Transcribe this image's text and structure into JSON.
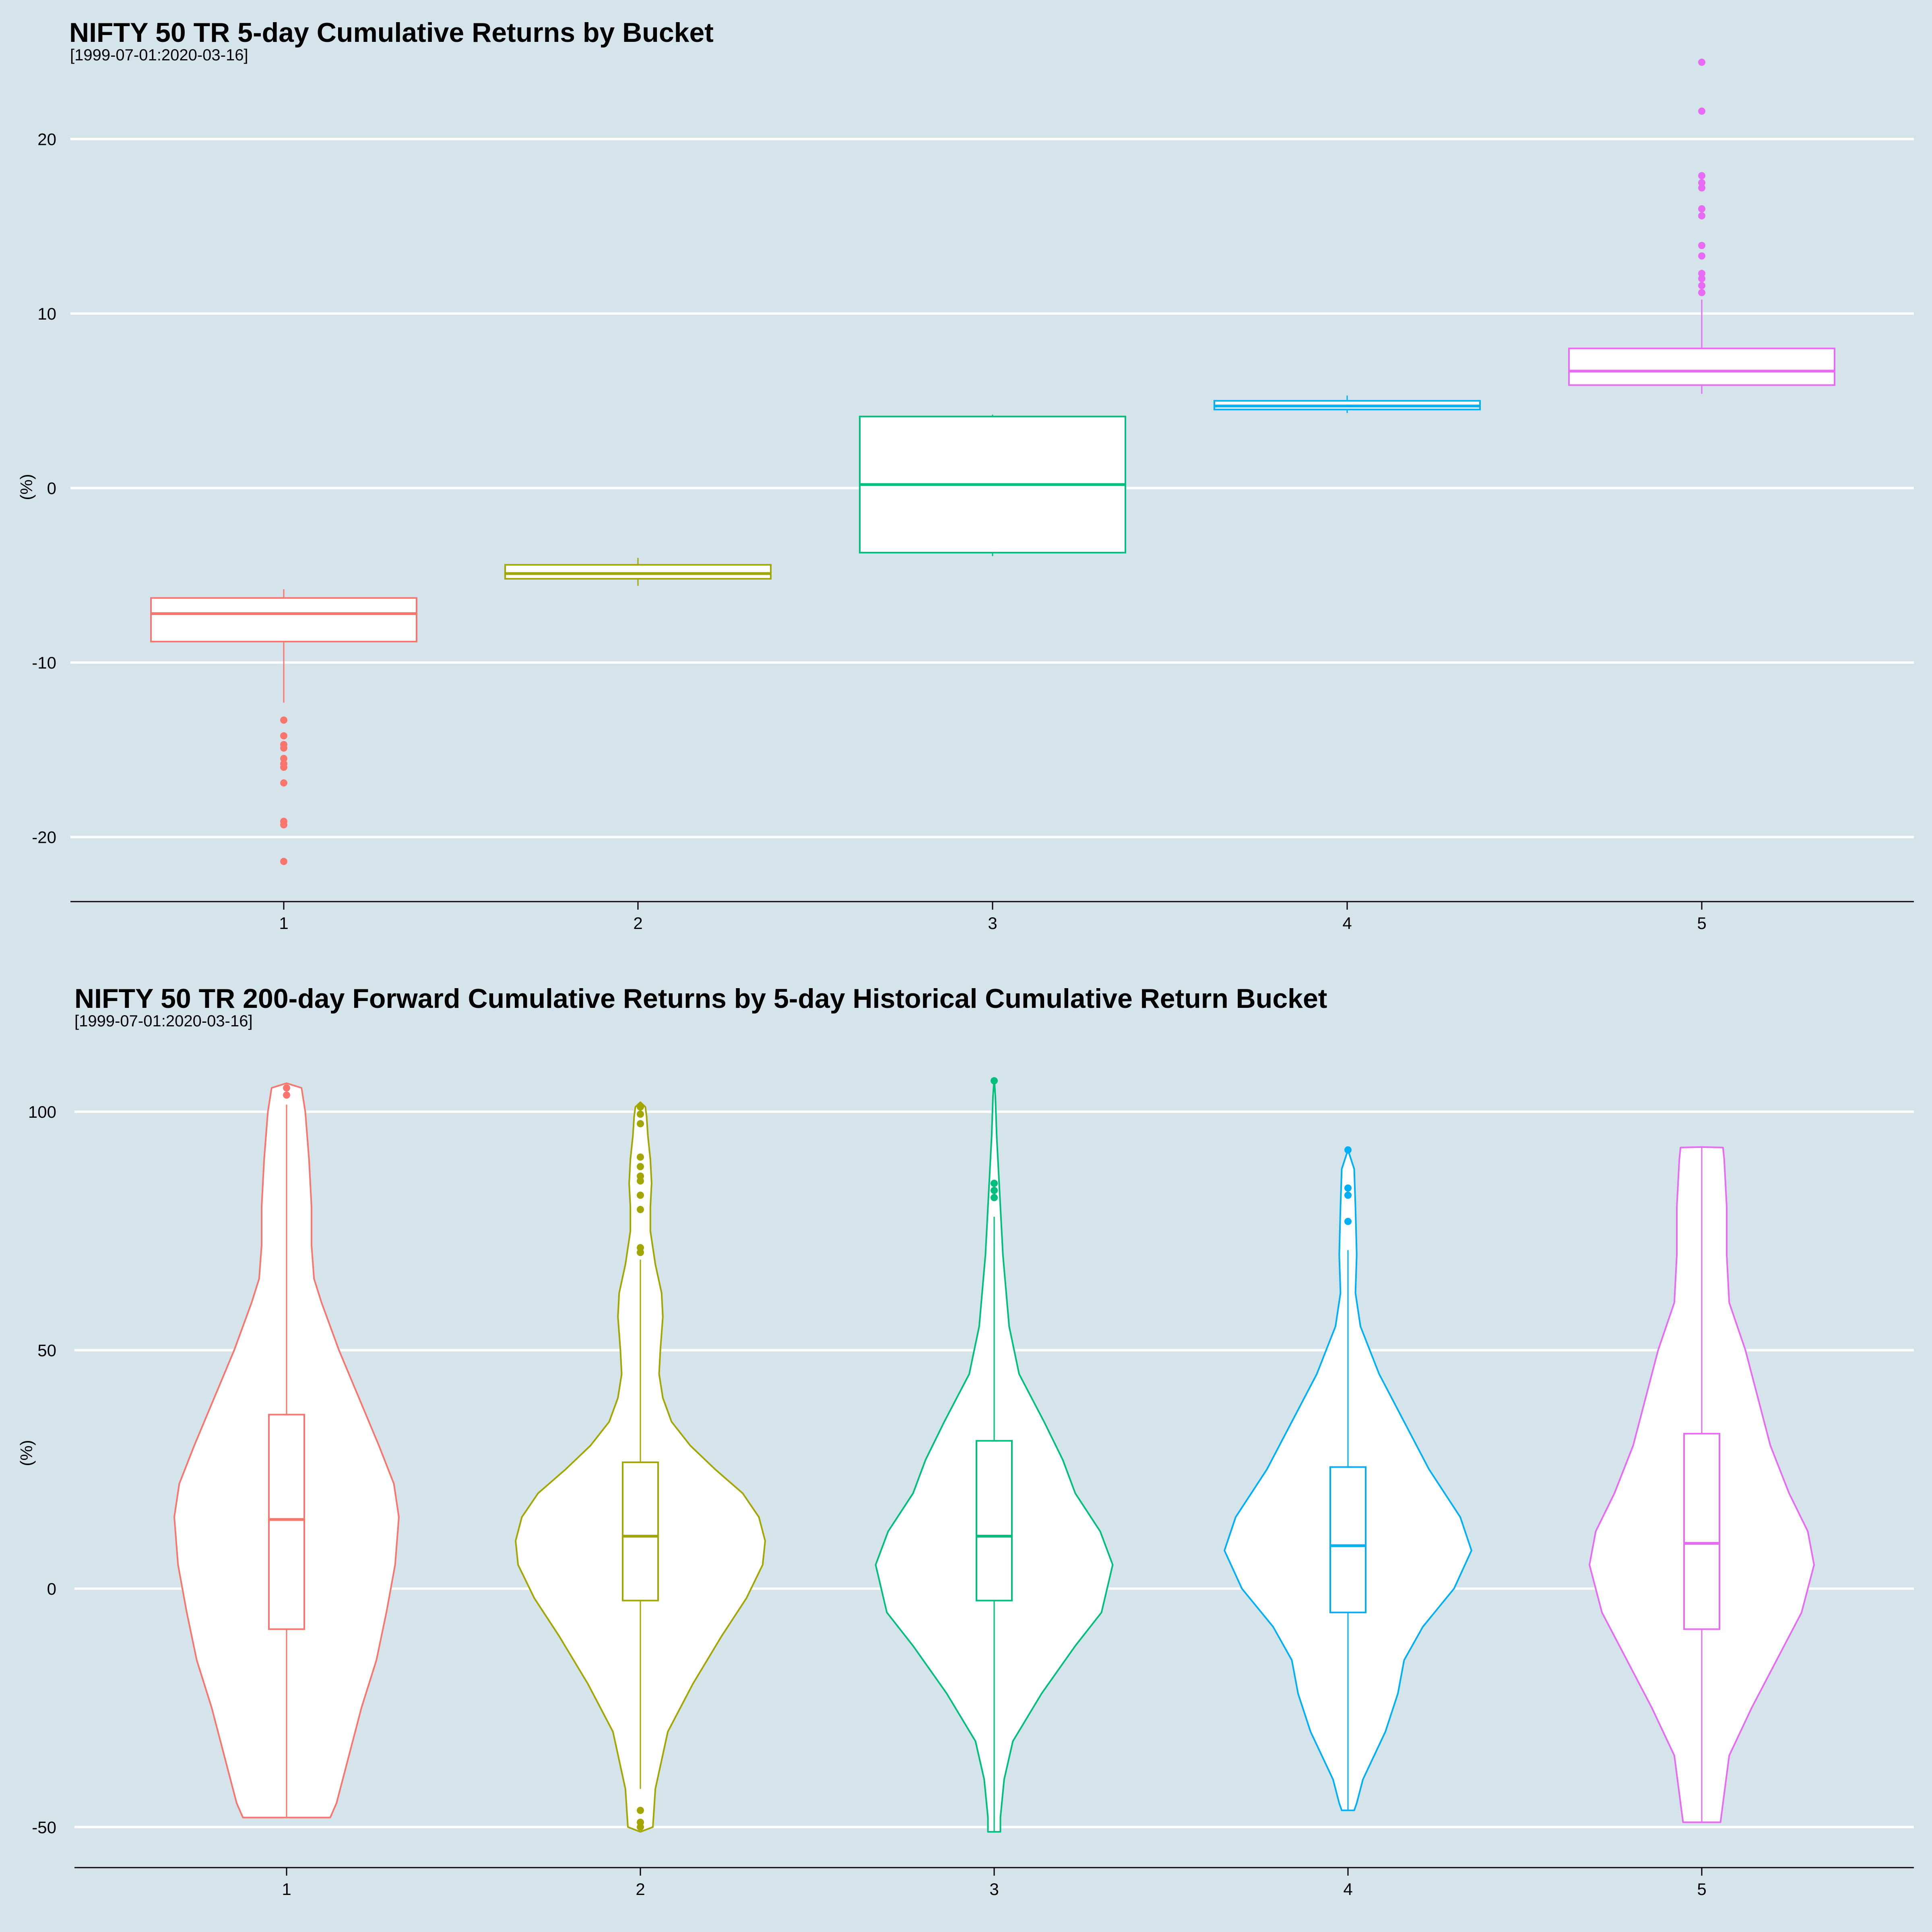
{
  "colors": {
    "background": "#d5e4eb",
    "grid": "#ffffff",
    "buckets": [
      "#f8766d",
      "#a3a500",
      "#00bf7d",
      "#00b0f6",
      "#e76bf3"
    ]
  },
  "chart_data": [
    {
      "type": "boxplot",
      "title": "NIFTY 50 TR 5-day Cumulative Returns by Bucket",
      "subtitle": "[1999-07-01:2020-03-16]",
      "ylabel": "(%)",
      "categories": [
        "1",
        "2",
        "3",
        "4",
        "5"
      ],
      "ylim": [
        -23.7,
        25.2
      ],
      "yticks": [
        -20,
        -10,
        0,
        10,
        20
      ],
      "ytick_labels": [
        "-20",
        "-10",
        "0",
        "10",
        "20"
      ],
      "grid": true,
      "legend": "none",
      "boxes": [
        {
          "category": "1",
          "whisker_low": -12.3,
          "q1": -8.8,
          "median": -7.2,
          "q3": -6.3,
          "whisker_high": -5.8,
          "outliers": [
            -13.3,
            -14.2,
            -14.7,
            -14.9,
            -15.5,
            -15.8,
            -16.0,
            -16.9,
            -19.1,
            -19.3,
            -21.4
          ]
        },
        {
          "category": "2",
          "whisker_low": -5.6,
          "q1": -5.2,
          "median": -4.9,
          "q3": -4.4,
          "whisker_high": -4.0,
          "outliers": []
        },
        {
          "category": "3",
          "whisker_low": -3.9,
          "q1": -3.7,
          "median": 0.2,
          "q3": 4.1,
          "whisker_high": 4.2,
          "outliers": []
        },
        {
          "category": "4",
          "whisker_low": 4.3,
          "q1": 4.5,
          "median": 4.7,
          "q3": 5.0,
          "whisker_high": 5.3,
          "outliers": []
        },
        {
          "category": "5",
          "whisker_low": 5.4,
          "q1": 5.9,
          "median": 6.7,
          "q3": 8.0,
          "whisker_high": 10.8,
          "outliers": [
            11.2,
            11.6,
            12.0,
            12.3,
            13.3,
            13.9,
            15.6,
            16.0,
            17.2,
            17.5,
            17.9,
            21.6,
            24.4
          ]
        }
      ]
    },
    {
      "type": "violin",
      "title": "NIFTY 50 TR 200-day Forward Cumulative Returns by 5-day Historical Cumulative Return Bucket",
      "subtitle": "[1999-07-01:2020-03-16]",
      "ylabel": "(%)",
      "categories": [
        "1",
        "2",
        "3",
        "4",
        "5"
      ],
      "ylim": [
        -58.5,
        112
      ],
      "yticks": [
        -50,
        0,
        50,
        100
      ],
      "ytick_labels": [
        "-50",
        "0",
        "50",
        "100"
      ],
      "grid": true,
      "legend": "none",
      "violins": [
        {
          "category": "1",
          "density": [
            [
              -48,
              0.35
            ],
            [
              -45,
              0.4
            ],
            [
              -35,
              0.5
            ],
            [
              -25,
              0.6
            ],
            [
              -15,
              0.72
            ],
            [
              -5,
              0.8
            ],
            [
              5,
              0.87
            ],
            [
              15,
              0.9
            ],
            [
              22,
              0.86
            ],
            [
              30,
              0.74
            ],
            [
              40,
              0.58
            ],
            [
              50,
              0.42
            ],
            [
              60,
              0.28
            ],
            [
              65,
              0.22
            ],
            [
              72,
              0.2
            ],
            [
              80,
              0.2
            ],
            [
              90,
              0.18
            ],
            [
              100,
              0.15
            ],
            [
              105,
              0.12
            ],
            [
              106,
              0.0
            ]
          ],
          "box": {
            "whisker_low": -48,
            "q1": -8.5,
            "median": 14.5,
            "q3": 36.5,
            "whisker_high": 101.5
          },
          "outliers": [
            103.5,
            105
          ]
        },
        {
          "category": "2",
          "density": [
            [
              -51,
              0.0
            ],
            [
              -50,
              0.1
            ],
            [
              -42,
              0.12
            ],
            [
              -30,
              0.22
            ],
            [
              -20,
              0.42
            ],
            [
              -10,
              0.65
            ],
            [
              -2,
              0.85
            ],
            [
              5,
              0.98
            ],
            [
              10,
              1.0
            ],
            [
              15,
              0.95
            ],
            [
              20,
              0.82
            ],
            [
              25,
              0.6
            ],
            [
              30,
              0.4
            ],
            [
              35,
              0.25
            ],
            [
              40,
              0.18
            ],
            [
              45,
              0.15
            ],
            [
              50,
              0.16
            ],
            [
              57,
              0.18
            ],
            [
              62,
              0.17
            ],
            [
              68,
              0.12
            ],
            [
              75,
              0.08
            ],
            [
              80,
              0.08
            ],
            [
              85,
              0.09
            ],
            [
              90,
              0.08
            ],
            [
              95,
              0.06
            ],
            [
              99,
              0.05
            ],
            [
              101,
              0.04
            ],
            [
              102,
              0.0
            ]
          ],
          "box": {
            "whisker_low": -42,
            "q1": -2.5,
            "median": 11,
            "q3": 26.5,
            "whisker_high": 69
          },
          "outliers": [
            -46.5,
            -49,
            -50,
            70.5,
            71.5,
            79.5,
            82.5,
            85.5,
            86.5,
            88.5,
            90.5,
            97.5,
            99.5,
            101
          ]
        },
        {
          "category": "3",
          "density": [
            [
              -51,
              0.05
            ],
            [
              -48,
              0.05
            ],
            [
              -40,
              0.08
            ],
            [
              -32,
              0.15
            ],
            [
              -22,
              0.38
            ],
            [
              -12,
              0.65
            ],
            [
              -5,
              0.86
            ],
            [
              5,
              0.95
            ],
            [
              12,
              0.85
            ],
            [
              20,
              0.65
            ],
            [
              27,
              0.55
            ],
            [
              35,
              0.4
            ],
            [
              45,
              0.2
            ],
            [
              55,
              0.12
            ],
            [
              70,
              0.07
            ],
            [
              85,
              0.04
            ],
            [
              95,
              0.02
            ],
            [
              103,
              0.01
            ],
            [
              107,
              0.0
            ]
          ],
          "box": {
            "whisker_low": -51,
            "q1": -2.5,
            "median": 11,
            "q3": 31,
            "whisker_high": 78
          },
          "outliers": [
            82,
            83.5,
            85,
            106.5
          ]
        },
        {
          "category": "4",
          "density": [
            [
              -46.5,
              0.05
            ],
            [
              -45,
              0.07
            ],
            [
              -40,
              0.12
            ],
            [
              -30,
              0.3
            ],
            [
              -22,
              0.4
            ],
            [
              -15,
              0.45
            ],
            [
              -8,
              0.6
            ],
            [
              0,
              0.85
            ],
            [
              8,
              0.99
            ],
            [
              15,
              0.9
            ],
            [
              25,
              0.65
            ],
            [
              35,
              0.45
            ],
            [
              45,
              0.25
            ],
            [
              55,
              0.1
            ],
            [
              62,
              0.06
            ],
            [
              70,
              0.07
            ],
            [
              80,
              0.06
            ],
            [
              88,
              0.05
            ],
            [
              92,
              0.0
            ]
          ],
          "box": {
            "whisker_low": -46.5,
            "q1": -5,
            "median": 9,
            "q3": 25.5,
            "whisker_high": 71
          },
          "outliers": [
            77,
            82.5,
            84,
            92
          ]
        },
        {
          "category": "5",
          "density": [
            [
              -49,
              0.15
            ],
            [
              -45,
              0.17
            ],
            [
              -35,
              0.22
            ],
            [
              -25,
              0.4
            ],
            [
              -15,
              0.6
            ],
            [
              -5,
              0.8
            ],
            [
              5,
              0.9
            ],
            [
              12,
              0.85
            ],
            [
              20,
              0.7
            ],
            [
              30,
              0.55
            ],
            [
              40,
              0.45
            ],
            [
              50,
              0.35
            ],
            [
              60,
              0.22
            ],
            [
              70,
              0.2
            ],
            [
              80,
              0.2
            ],
            [
              90,
              0.18
            ],
            [
              92.5,
              0.17
            ],
            [
              92.6,
              0.0
            ]
          ],
          "box": {
            "whisker_low": -49,
            "q1": -8.5,
            "median": 9.5,
            "q3": 32.5,
            "whisker_high": 92.5
          },
          "outliers": []
        }
      ]
    }
  ]
}
